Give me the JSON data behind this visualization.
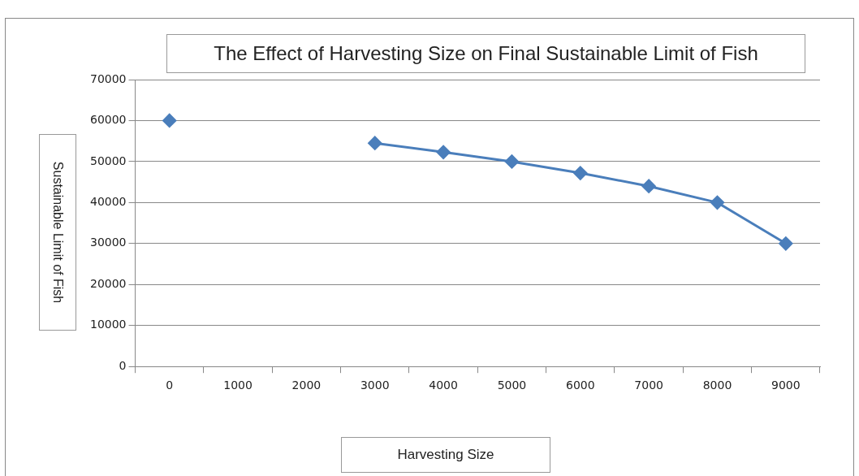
{
  "chart_data": {
    "type": "line",
    "title": "The Effect of Harvesting Size on Final Sustainable Limit of Fish",
    "xlabel": "Harvesting Size",
    "ylabel": "Sustainable Limit of Fish",
    "categories": [
      "0",
      "1000",
      "2000",
      "3000",
      "4000",
      "5000",
      "6000",
      "7000",
      "8000",
      "9000"
    ],
    "series": [
      {
        "color": "#4a7ebb",
        "values": [
          60000,
          null,
          null,
          54500,
          52300,
          50000,
          47200,
          44000,
          40000,
          30000
        ]
      }
    ],
    "ylim": [
      0,
      70000
    ],
    "yticks": [
      0,
      10000,
      20000,
      30000,
      40000,
      50000,
      60000,
      70000
    ],
    "grid": "y",
    "legend": false,
    "marker": "diamond",
    "line_style": "solid"
  }
}
